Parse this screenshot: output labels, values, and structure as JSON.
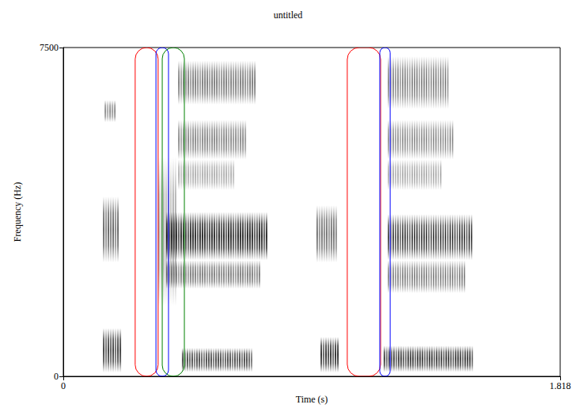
{
  "chart_data": {
    "type": "spectrogram",
    "title": "untitled",
    "x_label": "Time (s)",
    "y_label": "Frequency (Hz)",
    "xlim": [
      0,
      1.818
    ],
    "ylim": [
      0,
      7500
    ],
    "xticks": [
      0,
      1.818
    ],
    "yticks": [
      0,
      7500
    ],
    "energy_regions": [
      {
        "t": [
          0.145,
          0.217
        ],
        "f": [
          90,
          1100
        ],
        "level": 0.75
      },
      {
        "t": [
          0.145,
          0.211
        ],
        "f": [
          2600,
          4100
        ],
        "level": 0.6
      },
      {
        "t": [
          0.151,
          0.197
        ],
        "f": [
          5800,
          6300
        ],
        "level": 0.45
      },
      {
        "t": [
          0.347,
          0.42
        ],
        "f": [
          1600,
          5000
        ],
        "level": 0.35
      },
      {
        "t": [
          0.376,
          0.753
        ],
        "f": [
          2650,
          3750
        ],
        "level": 0.85
      },
      {
        "t": [
          0.376,
          0.724
        ],
        "f": [
          2000,
          2650
        ],
        "level": 0.5
      },
      {
        "t": [
          0.434,
          0.695
        ],
        "f": [
          100,
          650
        ],
        "level": 0.7
      },
      {
        "t": [
          0.42,
          0.709
        ],
        "f": [
          6200,
          7200
        ],
        "level": 0.5
      },
      {
        "t": [
          0.42,
          0.68
        ],
        "f": [
          4950,
          5850
        ],
        "level": 0.45
      },
      {
        "t": [
          0.42,
          0.637
        ],
        "f": [
          4250,
          4950
        ],
        "level": 0.3
      },
      {
        "t": [
          0.941,
          1.019
        ],
        "f": [
          90,
          900
        ],
        "level": 0.8
      },
      {
        "t": [
          0.926,
          1.008
        ],
        "f": [
          2600,
          3900
        ],
        "level": 0.55
      },
      {
        "t": [
          1.187,
          1.505
        ],
        "f": [
          2650,
          3700
        ],
        "level": 0.7
      },
      {
        "t": [
          1.187,
          1.477
        ],
        "f": [
          1900,
          2650
        ],
        "level": 0.45
      },
      {
        "t": [
          1.172,
          1.505
        ],
        "f": [
          100,
          700
        ],
        "level": 0.75
      },
      {
        "t": [
          1.187,
          1.419
        ],
        "f": [
          6100,
          7300
        ],
        "level": 0.45
      },
      {
        "t": [
          1.187,
          1.433
        ],
        "f": [
          4950,
          5850
        ],
        "level": 0.4
      },
      {
        "t": [
          1.187,
          1.39
        ],
        "f": [
          4250,
          4950
        ],
        "level": 0.3
      }
    ],
    "annotations": [
      {
        "t": [
          0.263,
          0.347
        ],
        "color": "red"
      },
      {
        "t": [
          0.339,
          0.385
        ],
        "color": "blue"
      },
      {
        "t": [
          0.362,
          0.443
        ],
        "color": "green"
      },
      {
        "t": [
          1.039,
          1.161
        ],
        "color": "red"
      },
      {
        "t": [
          1.158,
          1.196
        ],
        "color": "blue"
      }
    ]
  }
}
